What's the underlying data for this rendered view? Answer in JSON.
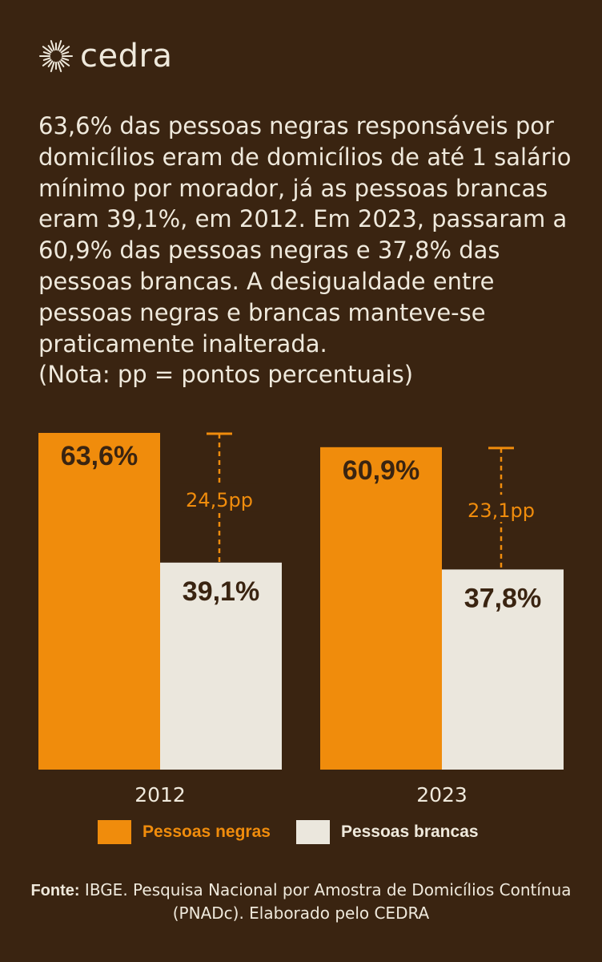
{
  "brand": {
    "name": "cedra",
    "logo_icon": "sun-burst-icon"
  },
  "intro_text": "63,6% das pessoas negras responsáveis por domicílios eram de domicílios de até 1 salário mínimo por morador, já as pessoas brancas eram 39,1%, em 2012. Em 2023, passaram a 60,9% das pessoas negras e 37,8% das pessoas brancas. A desigualdade entre pessoas negras e brancas manteve-se praticamente inalterada.\n(Nota: pp = pontos percentuais)",
  "colors": {
    "background": "#3a2411",
    "accent_orange": "#f08c0c",
    "cream": "#ebe7dd",
    "text_light": "#efe9dc",
    "label_dark": "#3a2411"
  },
  "chart_data": {
    "type": "bar",
    "categories": [
      "2012",
      "2023"
    ],
    "series": [
      {
        "name": "Pessoas negras",
        "values": [
          63.6,
          60.9
        ],
        "labels": [
          "63,6%",
          "60,9%"
        ],
        "color": "#f08c0c"
      },
      {
        "name": "Pessoas brancas",
        "values": [
          39.1,
          37.8
        ],
        "labels": [
          "39,1%",
          "37,8%"
        ],
        "color": "#ebe7dd"
      }
    ],
    "gap_annotations": [
      "24,5pp",
      "23,1pp"
    ],
    "ylim": [
      0,
      63.6
    ],
    "grid": false,
    "legend_position": "bottom"
  },
  "legend": {
    "negras_label": "Pessoas negras",
    "brancas_label": "Pessoas brancas"
  },
  "source": {
    "prefix": "Fonte:",
    "text": " IBGE. Pesquisa Nacional por Amostra de Domicílios Contínua (PNADc). Elaborado pelo CEDRA"
  }
}
